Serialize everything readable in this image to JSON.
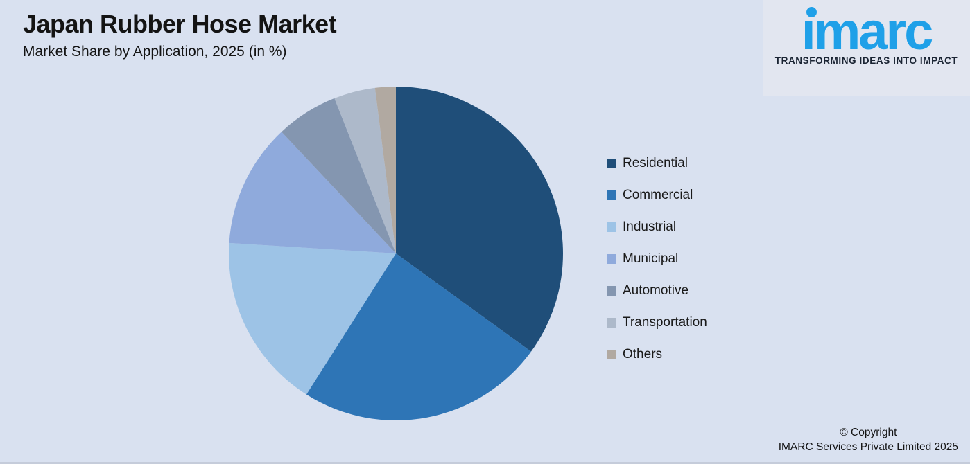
{
  "page": {
    "background_color": "#D9E1F0"
  },
  "header": {
    "title": "Japan Rubber Hose Market",
    "subtitle": "Market Share by Application, 2025 (in %)"
  },
  "logo": {
    "text": "imarc",
    "tagline": "TRANSFORMING IDEAS INTO IMPACT",
    "brand_color": "#1FA0E8",
    "tagline_color": "#1A2433"
  },
  "footer": {
    "line1": "© Copyright",
    "line2": "IMARC Services Private Limited 2025"
  },
  "chart_data": {
    "type": "pie",
    "title": "Japan Rubber Hose Market",
    "subtitle": "Market Share by Application, 2025 (in %)",
    "unit": "%",
    "legend_position": "right",
    "start_angle_deg": 0,
    "direction": "clockwise",
    "data_labels_shown": false,
    "labels": [
      "Residential",
      "Commercial",
      "Industrial",
      "Municipal",
      "Automotive",
      "Transportation",
      "Others"
    ],
    "values": [
      35,
      24,
      17,
      12,
      6,
      4,
      2
    ],
    "colors": [
      "#1F4E79",
      "#2E75B6",
      "#9DC3E6",
      "#8FAADC",
      "#8496B0",
      "#ADB9CA",
      "#B1A9A1"
    ]
  }
}
